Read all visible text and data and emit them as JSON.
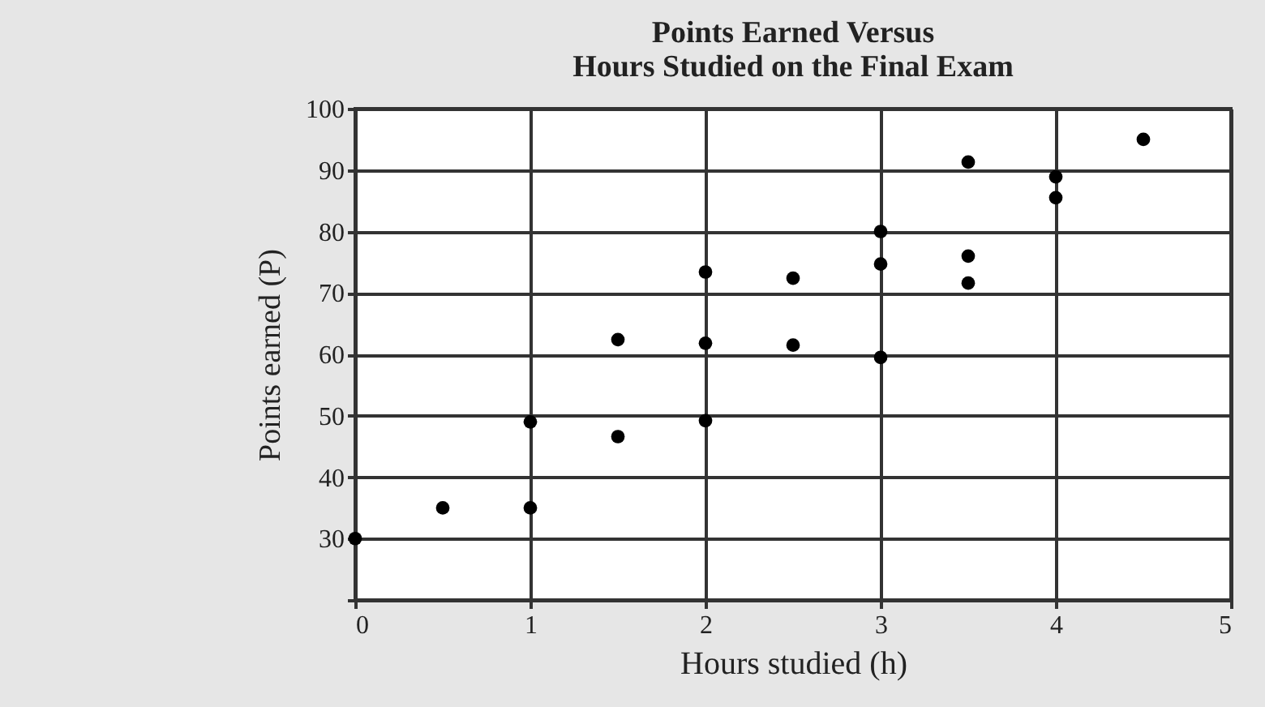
{
  "chart_data": {
    "type": "scatter",
    "title": "Points Earned Versus\nHours Studied on the Final Exam",
    "xlabel": "Hours studied (h)",
    "ylabel": "Points earned (P)",
    "x": [
      0,
      0.5,
      1,
      1,
      1.5,
      1.5,
      2,
      2,
      2,
      2.5,
      2.5,
      3,
      3,
      3,
      3.5,
      3.5,
      3.5,
      4,
      4,
      4.5
    ],
    "series": [
      {
        "color": "#000000",
        "values": [
          30,
          35,
          35,
          49,
          62.4,
          46.6,
          73.4,
          61.8,
          49.2,
          72.4,
          61.5,
          80,
          74.7,
          59.5,
          91.3,
          76,
          71.6,
          88.9,
          85.5,
          95
        ]
      }
    ],
    "xlim": [
      0,
      5
    ],
    "xticks": [
      0,
      1,
      2,
      3,
      4,
      5
    ],
    "ylim": [
      20,
      100
    ],
    "yticks": [
      {
        "value": 20,
        "label": null
      },
      30,
      40,
      50,
      60,
      70,
      80,
      90,
      100
    ],
    "grid": true,
    "marker": "circle",
    "legend": false
  }
}
